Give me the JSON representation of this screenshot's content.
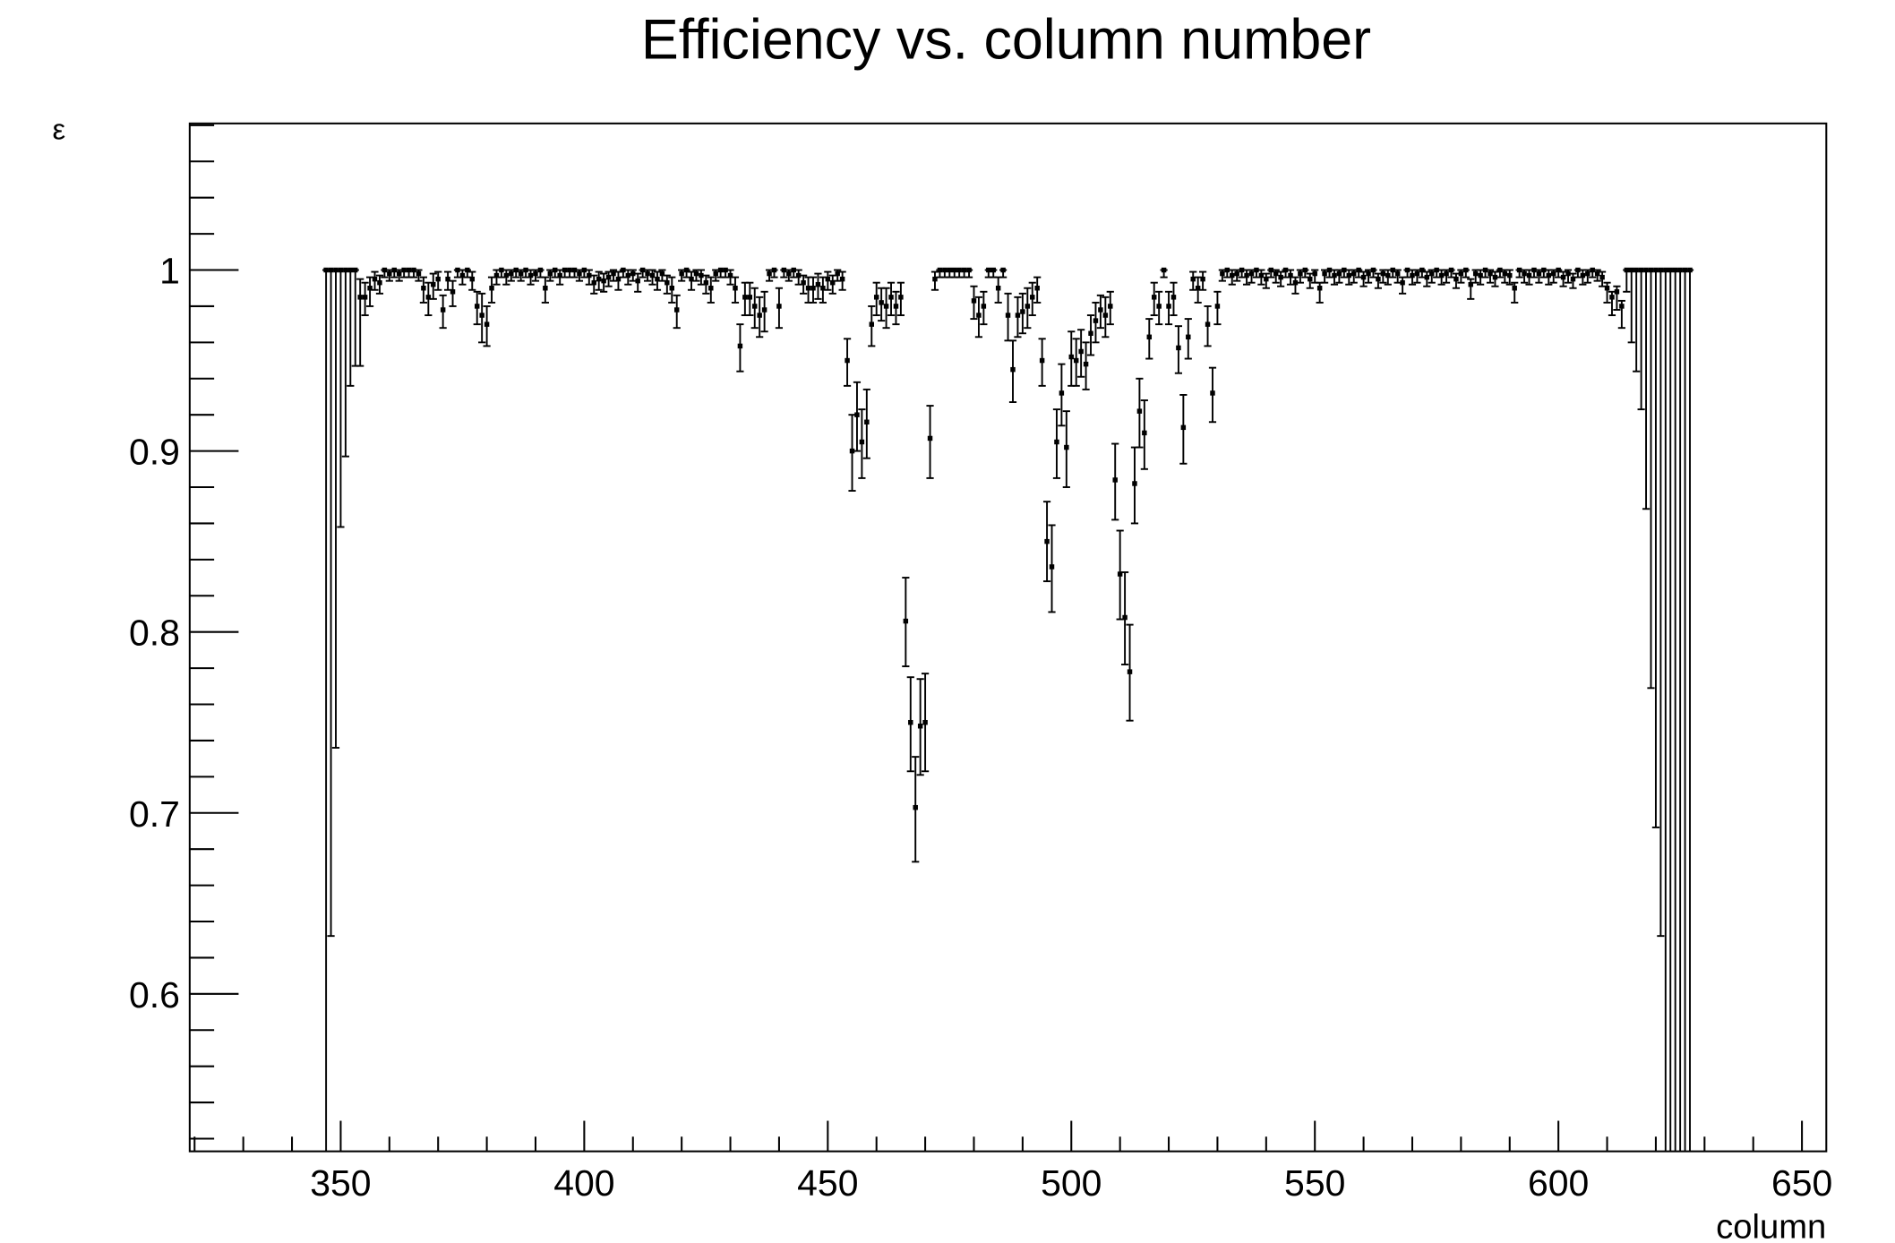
{
  "chart_data": {
    "type": "errorbar",
    "title": "Efficiency vs. column number",
    "xlabel": "column",
    "ylabel": "ε",
    "xlim": [
      319,
      655
    ],
    "ylim": [
      0.513,
      1.081
    ],
    "xticks": [
      350,
      400,
      450,
      500,
      550,
      600,
      650
    ],
    "xticks_minor": [
      320,
      330,
      340,
      360,
      370,
      380,
      390,
      410,
      420,
      430,
      440,
      460,
      470,
      480,
      490,
      510,
      520,
      530,
      540,
      560,
      570,
      580,
      590,
      610,
      620,
      630,
      640
    ],
    "yticks": [
      0.6,
      0.7,
      0.8,
      0.9,
      1
    ],
    "yticks_minor": [
      0.52,
      0.54,
      0.56,
      0.58,
      0.62,
      0.64,
      0.66,
      0.68,
      0.72,
      0.74,
      0.76,
      0.78,
      0.82,
      0.84,
      0.86,
      0.88,
      0.92,
      0.94,
      0.96,
      0.98,
      1.02,
      1.04,
      1.06,
      1.08
    ],
    "color": "#000000",
    "x": [
      347,
      348,
      349,
      350,
      351,
      352,
      353,
      354,
      355,
      356,
      357,
      358,
      359,
      360,
      361,
      362,
      363,
      364,
      365,
      366,
      367,
      368,
      369,
      370,
      371,
      372,
      373,
      374,
      375,
      376,
      377,
      378,
      379,
      380,
      381,
      382,
      383,
      384,
      385,
      386,
      387,
      388,
      389,
      390,
      391,
      392,
      393,
      394,
      395,
      396,
      397,
      398,
      399,
      400,
      401,
      402,
      403,
      404,
      405,
      406,
      407,
      408,
      409,
      410,
      411,
      412,
      413,
      414,
      415,
      416,
      417,
      418,
      419,
      420,
      421,
      422,
      423,
      424,
      425,
      426,
      427,
      428,
      429,
      430,
      431,
      432,
      433,
      434,
      435,
      436,
      437,
      438,
      439,
      440,
      441,
      442,
      443,
      444,
      445,
      446,
      447,
      448,
      449,
      450,
      451,
      452,
      453,
      454,
      455,
      456,
      457,
      458,
      459,
      460,
      461,
      462,
      463,
      464,
      465,
      466,
      467,
      468,
      469,
      470,
      471,
      472,
      473,
      474,
      475,
      476,
      477,
      478,
      479,
      480,
      481,
      482,
      483,
      484,
      485,
      486,
      487,
      488,
      489,
      490,
      491,
      492,
      493,
      494,
      495,
      496,
      497,
      498,
      499,
      500,
      501,
      502,
      503,
      504,
      505,
      506,
      507,
      508,
      509,
      510,
      511,
      512,
      513,
      514,
      515,
      516,
      517,
      518,
      519,
      520,
      521,
      522,
      523,
      524,
      525,
      526,
      527,
      528,
      529,
      530,
      531,
      532,
      533,
      534,
      535,
      536,
      537,
      538,
      539,
      540,
      541,
      542,
      543,
      544,
      545,
      546,
      547,
      548,
      549,
      550,
      551,
      552,
      553,
      554,
      555,
      556,
      557,
      558,
      559,
      560,
      561,
      562,
      563,
      564,
      565,
      566,
      567,
      568,
      569,
      570,
      571,
      572,
      573,
      574,
      575,
      576,
      577,
      578,
      579,
      580,
      581,
      582,
      583,
      584,
      585,
      586,
      587,
      588,
      589,
      590,
      591,
      592,
      593,
      594,
      595,
      596,
      597,
      598,
      599,
      600,
      601,
      602,
      603,
      604,
      605,
      606,
      607,
      608,
      609,
      610,
      611,
      612,
      613,
      614,
      615,
      616,
      617,
      618,
      619,
      620,
      621,
      622,
      623,
      624,
      625,
      626,
      627
    ],
    "values": [
      1,
      1,
      1,
      1,
      1,
      1,
      1,
      0.985,
      0.985,
      0.99,
      0.995,
      0.993,
      1,
      0.998,
      1,
      0.998,
      1,
      1,
      1,
      0.998,
      0.99,
      0.985,
      0.992,
      0.995,
      0.978,
      0.995,
      0.988,
      1,
      0.997,
      1,
      0.995,
      0.98,
      0.975,
      0.97,
      0.99,
      0.997,
      1,
      0.997,
      0.998,
      1,
      0.998,
      1,
      0.997,
      0.998,
      1,
      0.99,
      0.998,
      1,
      0.997,
      1,
      1,
      1,
      0.998,
      1,
      0.997,
      0.993,
      0.995,
      0.994,
      0.996,
      0.998,
      0.995,
      1,
      0.997,
      0.998,
      0.994,
      1,
      0.998,
      0.997,
      0.995,
      0.998,
      0.993,
      0.99,
      0.978,
      0.998,
      1,
      0.995,
      0.998,
      0.997,
      0.993,
      0.99,
      0.998,
      1,
      1,
      0.997,
      0.99,
      0.958,
      0.985,
      0.985,
      0.98,
      0.975,
      0.978,
      0.998,
      1,
      0.98,
      1,
      0.998,
      1,
      0.997,
      0.993,
      0.99,
      0.99,
      0.992,
      0.99,
      0.995,
      0.993,
      0.998,
      0.995,
      0.95,
      0.9,
      0.92,
      0.905,
      0.916,
      0.97,
      0.985,
      0.982,
      0.98,
      0.985,
      0.98,
      0.985,
      0.806,
      0.75,
      0.703,
      0.748,
      0.75,
      0.907,
      0.995,
      1,
      1,
      1,
      1,
      1,
      1,
      1,
      0.983,
      0.975,
      0.98,
      1,
      1,
      0.99,
      1,
      0.975,
      0.945,
      0.975,
      0.977,
      0.98,
      0.985,
      0.99,
      0.95,
      0.85,
      0.836,
      0.905,
      0.932,
      0.902,
      0.952,
      0.95,
      0.955,
      0.948,
      0.965,
      0.972,
      0.978,
      0.975,
      0.98,
      0.884,
      0.832,
      0.808,
      0.778,
      0.882,
      0.922,
      0.91,
      0.963,
      0.985,
      0.98,
      1,
      0.98,
      0.985,
      0.957,
      0.913,
      0.963,
      0.995,
      0.99,
      0.995,
      0.97,
      0.932,
      0.98,
      0.998,
      1,
      0.997,
      0.998,
      1,
      0.997,
      0.998,
      1,
      0.997,
      0.995,
      1,
      0.998,
      0.996,
      1,
      0.997,
      0.993,
      0.998,
      1,
      0.995,
      0.998,
      0.99,
      0.998,
      1,
      0.997,
      0.998,
      1,
      0.997,
      0.998,
      1,
      0.996,
      0.998,
      1,
      0.995,
      0.998,
      0.997,
      1,
      0.998,
      0.993,
      1,
      0.997,
      0.998,
      1,
      0.996,
      0.998,
      1,
      0.997,
      0.998,
      1,
      0.995,
      0.998,
      1,
      0.992,
      0.998,
      0.997,
      1,
      0.998,
      0.996,
      1,
      0.998,
      0.997,
      0.99,
      1,
      0.998,
      0.997,
      1,
      0.998,
      1,
      0.997,
      0.998,
      1,
      0.996,
      0.998,
      0.995,
      1,
      0.997,
      0.998,
      1,
      0.998,
      0.996,
      0.99,
      0.985,
      0.988,
      0.98,
      1,
      1,
      1,
      1,
      1,
      1,
      1,
      1,
      1,
      1,
      1,
      1,
      1,
      1
    ],
    "errors_low": [
      0.5,
      0.368,
      0.264,
      0.142,
      0.103,
      0.064,
      0.053,
      0.038,
      0.01,
      0.01,
      0.006,
      0.006,
      0.004,
      0.004,
      0.004,
      0.004,
      0.004,
      0.004,
      0.004,
      0.004,
      0.008,
      0.01,
      0.008,
      0.006,
      0.01,
      0.006,
      0.008,
      0.004,
      0.005,
      0.004,
      0.006,
      0.01,
      0.015,
      0.012,
      0.008,
      0.005,
      0.004,
      0.005,
      0.004,
      0.004,
      0.004,
      0.004,
      0.005,
      0.004,
      0.004,
      0.008,
      0.004,
      0.004,
      0.005,
      0.004,
      0.004,
      0.004,
      0.004,
      0.004,
      0.005,
      0.006,
      0.006,
      0.006,
      0.005,
      0.004,
      0.006,
      0.004,
      0.005,
      0.004,
      0.006,
      0.004,
      0.004,
      0.005,
      0.006,
      0.004,
      0.006,
      0.008,
      0.01,
      0.004,
      0.004,
      0.006,
      0.004,
      0.005,
      0.006,
      0.008,
      0.004,
      0.004,
      0.004,
      0.005,
      0.008,
      0.014,
      0.01,
      0.01,
      0.012,
      0.012,
      0.012,
      0.004,
      0.004,
      0.012,
      0.004,
      0.004,
      0.004,
      0.005,
      0.006,
      0.008,
      0.008,
      0.008,
      0.008,
      0.006,
      0.006,
      0.004,
      0.006,
      0.014,
      0.022,
      0.02,
      0.02,
      0.02,
      0.012,
      0.01,
      0.01,
      0.012,
      0.01,
      0.01,
      0.01,
      0.025,
      0.027,
      0.03,
      0.027,
      0.027,
      0.022,
      0.006,
      0.004,
      0.004,
      0.004,
      0.004,
      0.004,
      0.004,
      0.004,
      0.01,
      0.012,
      0.01,
      0.004,
      0.004,
      0.008,
      0.004,
      0.014,
      0.018,
      0.012,
      0.012,
      0.012,
      0.01,
      0.008,
      0.014,
      0.022,
      0.025,
      0.02,
      0.018,
      0.022,
      0.016,
      0.014,
      0.014,
      0.014,
      0.012,
      0.012,
      0.01,
      0.012,
      0.01,
      0.022,
      0.025,
      0.026,
      0.027,
      0.022,
      0.02,
      0.02,
      0.012,
      0.01,
      0.01,
      0.004,
      0.01,
      0.01,
      0.014,
      0.02,
      0.012,
      0.006,
      0.008,
      0.006,
      0.012,
      0.016,
      0.01,
      0.004,
      0.004,
      0.005,
      0.004,
      0.004,
      0.005,
      0.005,
      0.004,
      0.005,
      0.005,
      0.004,
      0.005,
      0.005,
      0.004,
      0.005,
      0.006,
      0.005,
      0.004,
      0.005,
      0.005,
      0.008,
      0.005,
      0.004,
      0.005,
      0.005,
      0.004,
      0.005,
      0.005,
      0.004,
      0.005,
      0.005,
      0.004,
      0.005,
      0.005,
      0.005,
      0.004,
      0.005,
      0.006,
      0.004,
      0.005,
      0.005,
      0.004,
      0.005,
      0.005,
      0.004,
      0.005,
      0.005,
      0.004,
      0.005,
      0.005,
      0.004,
      0.008,
      0.005,
      0.005,
      0.004,
      0.005,
      0.005,
      0.004,
      0.005,
      0.005,
      0.008,
      0.004,
      0.005,
      0.005,
      0.004,
      0.005,
      0.004,
      0.005,
      0.005,
      0.004,
      0.005,
      0.005,
      0.005,
      0.004,
      0.005,
      0.005,
      0.004,
      0.004,
      0.005,
      0.008,
      0.01,
      0.01,
      0.012,
      0.012,
      0.04,
      0.056,
      0.077,
      0.132,
      0.231,
      0.308,
      0.368,
      0.5,
      0.5,
      0.5,
      0.5,
      0.5,
      0.5
    ],
    "errors_high": [
      0,
      0,
      0,
      0,
      0,
      0,
      0,
      0.01,
      0.008,
      0.006,
      0.004,
      0.004,
      0,
      0.002,
      0,
      0.002,
      0,
      0,
      0,
      0.002,
      0.006,
      0.008,
      0.006,
      0.004,
      0.008,
      0.004,
      0.006,
      0,
      0.003,
      0,
      0.004,
      0.008,
      0.012,
      0.01,
      0.006,
      0.003,
      0,
      0.003,
      0.002,
      0,
      0.002,
      0,
      0.003,
      0.002,
      0,
      0.006,
      0.002,
      0,
      0.003,
      0,
      0,
      0,
      0.002,
      0,
      0.003,
      0.004,
      0.004,
      0.004,
      0.003,
      0.002,
      0.004,
      0,
      0.003,
      0.002,
      0.004,
      0,
      0.002,
      0.003,
      0.004,
      0.002,
      0.004,
      0.006,
      0.008,
      0.002,
      0,
      0.004,
      0.002,
      0.003,
      0.004,
      0.006,
      0.002,
      0,
      0,
      0.003,
      0.006,
      0.012,
      0.008,
      0.008,
      0.01,
      0.01,
      0.01,
      0.002,
      0,
      0.01,
      0,
      0.002,
      0,
      0.003,
      0.004,
      0.006,
      0.006,
      0.006,
      0.006,
      0.004,
      0.004,
      0.002,
      0.004,
      0.012,
      0.02,
      0.018,
      0.018,
      0.018,
      0.01,
      0.008,
      0.008,
      0.01,
      0.008,
      0.008,
      0.008,
      0.024,
      0.025,
      0.028,
      0.026,
      0.027,
      0.018,
      0.004,
      0,
      0,
      0,
      0,
      0,
      0,
      0,
      0.008,
      0.01,
      0.008,
      0,
      0,
      0.006,
      0,
      0.012,
      0.016,
      0.01,
      0.01,
      0.01,
      0.008,
      0.006,
      0.012,
      0.022,
      0.023,
      0.018,
      0.016,
      0.02,
      0.014,
      0.012,
      0.012,
      0.012,
      0.01,
      0.01,
      0.008,
      0.01,
      0.008,
      0.02,
      0.024,
      0.025,
      0.026,
      0.02,
      0.018,
      0.018,
      0.01,
      0.008,
      0.008,
      0,
      0.008,
      0.008,
      0.012,
      0.018,
      0.01,
      0.004,
      0.006,
      0.004,
      0.01,
      0.014,
      0.008,
      0.002,
      0,
      0.003,
      0.002,
      0,
      0.003,
      0.002,
      0,
      0.003,
      0.003,
      0,
      0.002,
      0.003,
      0,
      0.003,
      0.003,
      0.002,
      0,
      0.003,
      0.002,
      0.003,
      0.002,
      0,
      0.003,
      0.002,
      0,
      0.003,
      0.002,
      0,
      0.003,
      0.002,
      0,
      0.003,
      0.002,
      0.003,
      0,
      0.002,
      0.003,
      0,
      0.003,
      0.002,
      0,
      0.003,
      0.002,
      0,
      0.003,
      0.002,
      0,
      0.003,
      0.002,
      0,
      0.003,
      0.002,
      0.003,
      0,
      0.002,
      0.003,
      0,
      0.002,
      0.003,
      0.003,
      0,
      0.002,
      0.003,
      0,
      0.002,
      0,
      0.003,
      0.002,
      0,
      0.003,
      0.002,
      0.003,
      0,
      0.003,
      0.002,
      0,
      0.002,
      0.003,
      0.003,
      0.003,
      0.003,
      0.003,
      0,
      0,
      0,
      0,
      0,
      0,
      0,
      0,
      0,
      0,
      0,
      0,
      0,
      0
    ]
  }
}
